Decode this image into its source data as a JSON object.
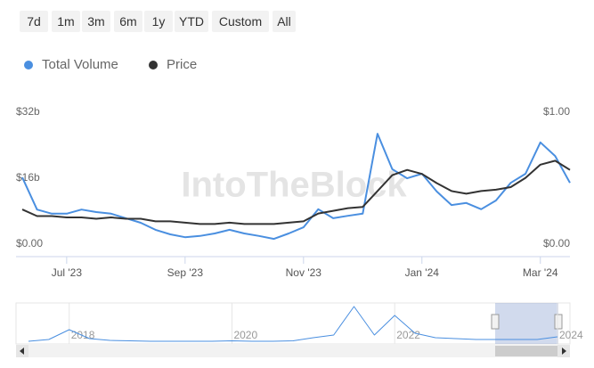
{
  "range_buttons": [
    "7d",
    "1m",
    "3m",
    "6m",
    "1y",
    "YTD",
    "Custom",
    "All"
  ],
  "watermark": "IntoTheBlock",
  "chart_data": [
    {
      "type": "line",
      "categories": [
        null,
        null,
        null,
        "Jul '23",
        null,
        null,
        null,
        null,
        null,
        null,
        null,
        "Sep '23",
        null,
        null,
        null,
        null,
        null,
        null,
        null,
        "Nov '23",
        null,
        null,
        null,
        null,
        null,
        null,
        null,
        "Jan '24",
        null,
        null,
        null,
        null,
        null,
        null,
        null,
        "Mar '24",
        null,
        null
      ],
      "series": [
        {
          "name": "Total Volume",
          "color": "#4a8fe0",
          "values": [
            17.7,
            9.9,
            8.9,
            8.9,
            9.9,
            9.3,
            8.9,
            7.8,
            6.7,
            5.0,
            3.9,
            3.2,
            3.5,
            4.1,
            5.0,
            4.1,
            3.5,
            2.8,
            4.1,
            5.6,
            10.0,
            7.8,
            8.4,
            8.9,
            28.3,
            19.7,
            17.5,
            18.6,
            14.3,
            11.0,
            11.5,
            10.0,
            12.1,
            16.4,
            18.6,
            26.2,
            22.9,
            16.4
          ]
        },
        {
          "name": "Price",
          "color": "#333333",
          "axis": "y2",
          "values": [
            0.31,
            0.26,
            0.26,
            0.25,
            0.25,
            0.24,
            0.25,
            0.24,
            0.24,
            0.22,
            0.22,
            0.21,
            0.2,
            0.2,
            0.21,
            0.2,
            0.2,
            0.2,
            0.21,
            0.22,
            0.28,
            0.3,
            0.32,
            0.33,
            0.45,
            0.57,
            0.61,
            0.58,
            0.51,
            0.45,
            0.43,
            0.45,
            0.46,
            0.48,
            0.55,
            0.65,
            0.68,
            0.61
          ]
        }
      ],
      "ylim": [
        0,
        32
      ],
      "yticks": [
        {
          "value": 0,
          "label": "$0.00"
        },
        {
          "value": 16,
          "label": "$16b"
        },
        {
          "value": 32,
          "label": "$32b"
        }
      ],
      "y2lim": [
        0,
        1
      ],
      "y2ticks": [
        {
          "value": 0,
          "label": "$0.00"
        },
        {
          "value": 1,
          "label": "$1.00"
        }
      ],
      "grid": false,
      "legend": "top-left"
    },
    {
      "type": "line",
      "categories": [
        null,
        null,
        "2018",
        null,
        null,
        null,
        null,
        null,
        null,
        null,
        "2020",
        null,
        null,
        null,
        null,
        null,
        null,
        null,
        "2022",
        null,
        null,
        null,
        null,
        null,
        null,
        null,
        "2024"
      ],
      "series": [
        {
          "name": "Total Volume",
          "color": "#4a8fe0",
          "values": [
            1,
            3,
            14,
            4,
            2,
            1.5,
            1,
            1,
            1,
            1,
            1.5,
            1,
            1,
            1.5,
            5,
            8,
            40,
            8,
            30,
            10,
            5,
            4,
            3,
            3,
            3,
            3,
            6
          ]
        }
      ]
    }
  ]
}
